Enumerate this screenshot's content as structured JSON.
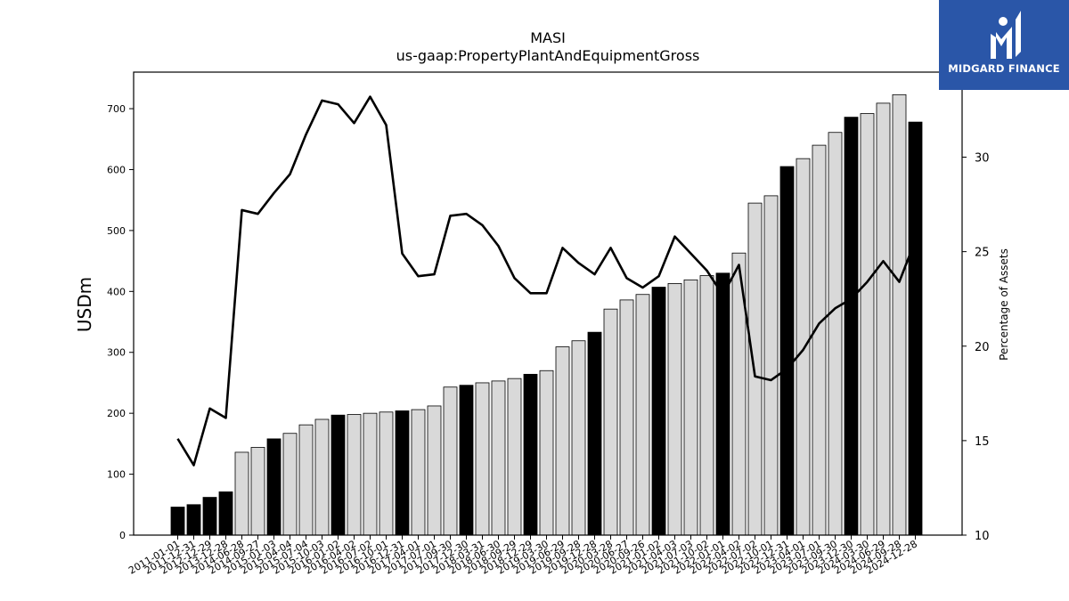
{
  "chart_data": {
    "type": "bar",
    "title": "MASI",
    "subtitle": "us-gaap:PropertyPlantAndEquipmentGross",
    "ylabel": "USDm",
    "y2label": "Percentage of Assets",
    "ylim": [
      0,
      760
    ],
    "y2lim": [
      10,
      34.5
    ],
    "yticks": [
      0,
      100,
      200,
      300,
      400,
      500,
      600,
      700
    ],
    "y2ticks": [
      10,
      15,
      20,
      25,
      30
    ],
    "grid": false,
    "categories": [
      "2011-01-01",
      "2011-12-31",
      "2012-12-29",
      "2013-12-28",
      "2014-06-28",
      "2014-09-27",
      "2015-01-03",
      "2015-04-04",
      "2015-07-04",
      "2015-10-03",
      "2016-01-02",
      "2016-04-02",
      "2016-07-02",
      "2016-10-01",
      "2016-12-31",
      "2017-04-01",
      "2017-07-01",
      "2017-09-30",
      "2017-12-30",
      "2018-03-31",
      "2018-06-30",
      "2018-09-29",
      "2018-12-29",
      "2019-03-30",
      "2019-06-29",
      "2019-09-28",
      "2019-12-28",
      "2020-03-28",
      "2020-06-27",
      "2020-09-26",
      "2021-01-02",
      "2021-04-03",
      "2021-07-03",
      "2021-10-02",
      "2022-01-01",
      "2022-04-02",
      "2022-07-02",
      "2022-10-01",
      "2022-12-31",
      "2023-04-01",
      "2023-07-01",
      "2023-09-30",
      "2023-12-30",
      "2024-03-30",
      "2024-06-29",
      "2024-09-28",
      "2024-12-28"
    ],
    "bar_values": [
      46,
      50,
      62,
      71,
      136,
      144,
      158,
      167,
      181,
      190,
      197,
      198,
      200,
      202,
      204,
      206,
      212,
      243,
      246,
      250,
      253,
      257,
      264,
      270,
      309,
      319,
      333,
      371,
      386,
      395,
      407,
      413,
      419,
      426,
      430,
      463,
      545,
      557,
      605,
      618,
      640,
      661,
      686,
      692,
      709,
      723,
      678
    ],
    "annual_flags": [
      1,
      1,
      1,
      1,
      0,
      0,
      1,
      0,
      0,
      0,
      1,
      0,
      0,
      0,
      1,
      0,
      0,
      0,
      1,
      0,
      0,
      0,
      1,
      0,
      0,
      0,
      1,
      0,
      0,
      0,
      1,
      0,
      0,
      0,
      1,
      0,
      0,
      0,
      1,
      0,
      0,
      0,
      1,
      0,
      0,
      0,
      1
    ],
    "series": [
      {
        "values": [
          15.1,
          13.7,
          16.7,
          16.2,
          27.2,
          27.0,
          28.1,
          29.1,
          31.2,
          33.0,
          32.8,
          31.8,
          33.2,
          31.7,
          24.9,
          23.7,
          23.8,
          26.9,
          27.0,
          26.4,
          25.3,
          23.6,
          22.8,
          22.8,
          25.2,
          24.4,
          23.8,
          25.2,
          23.6,
          23.1,
          23.7,
          25.8,
          24.9,
          24.0,
          22.7,
          24.3,
          18.4,
          18.2,
          18.8,
          19.8,
          21.2,
          22.0,
          22.5,
          23.4,
          24.5,
          23.4,
          25.6
        ]
      }
    ],
    "colors": {
      "annual_bar": "#000000",
      "quarter_bar": "#d9d9d9",
      "line": "#000000",
      "bar_edge": "#000000"
    }
  },
  "logo": {
    "text": "MIDGARD FINANCE",
    "background": "#2a56a8"
  }
}
